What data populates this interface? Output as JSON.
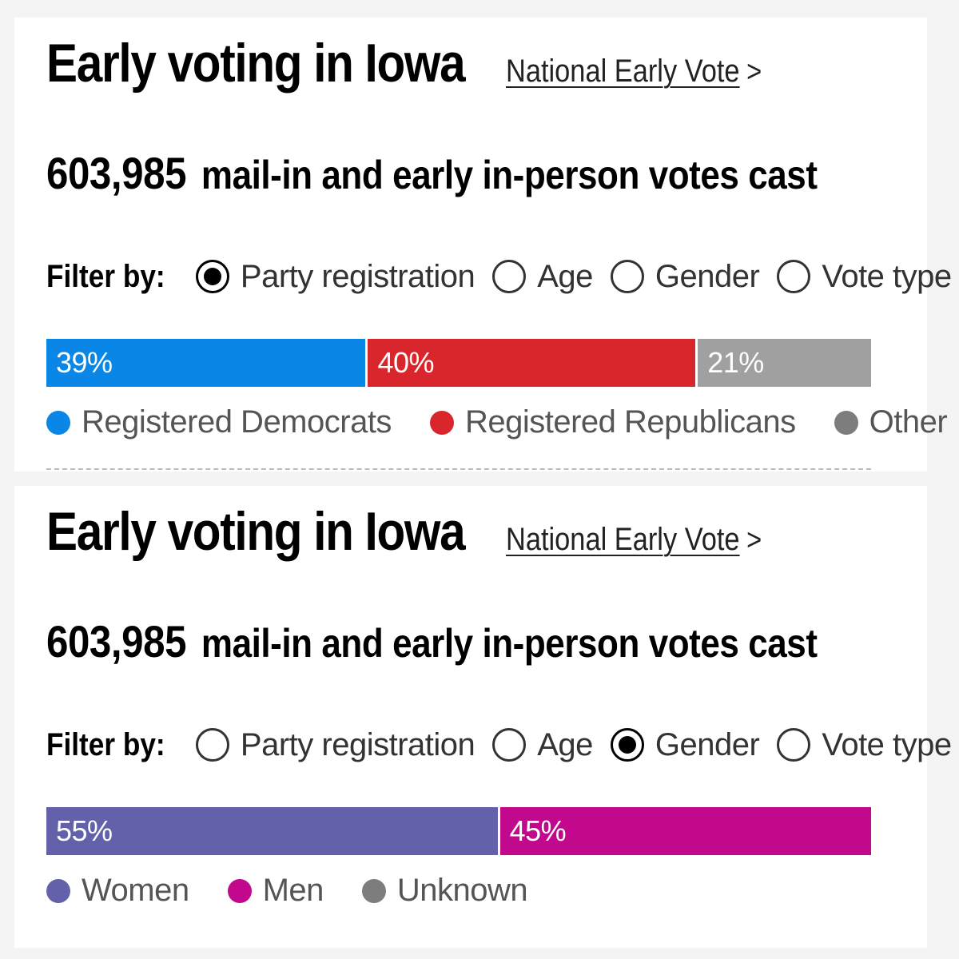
{
  "panels": [
    {
      "title": "Early voting in Iowa",
      "link_text": "National Early Vote",
      "link_chevron": ">",
      "votes_number": "603,985",
      "votes_text": "mail-in and early in-person votes cast",
      "filter_label": "Filter by:",
      "filter_options": [
        "Party registration",
        "Age",
        "Gender",
        "Vote type"
      ],
      "selected_filter": "Party registration",
      "bar": [
        {
          "label": "39%",
          "value": 39,
          "color": "#0a87e6"
        },
        {
          "label": "40%",
          "value": 40,
          "color": "#d9262c"
        },
        {
          "label": "21%",
          "value": 21,
          "color": "#a0a0a0"
        }
      ],
      "legend": [
        {
          "label": "Registered Democrats",
          "color": "#0a87e6"
        },
        {
          "label": "Registered Republicans",
          "color": "#d9262c"
        },
        {
          "label": "Other",
          "color": "#7d7d7d"
        }
      ]
    },
    {
      "title": "Early voting in Iowa",
      "link_text": "National Early Vote",
      "link_chevron": ">",
      "votes_number": "603,985",
      "votes_text": "mail-in and early in-person votes cast",
      "filter_label": "Filter by:",
      "filter_options": [
        "Party registration",
        "Age",
        "Gender",
        "Vote type"
      ],
      "selected_filter": "Gender",
      "bar": [
        {
          "label": "55%",
          "value": 55,
          "color": "#6461ab"
        },
        {
          "label": "45%",
          "value": 45,
          "color": "#c2098e"
        }
      ],
      "legend": [
        {
          "label": "Women",
          "color": "#6461ab"
        },
        {
          "label": "Men",
          "color": "#c2098e"
        },
        {
          "label": "Unknown",
          "color": "#7d7d7d"
        }
      ]
    }
  ]
}
